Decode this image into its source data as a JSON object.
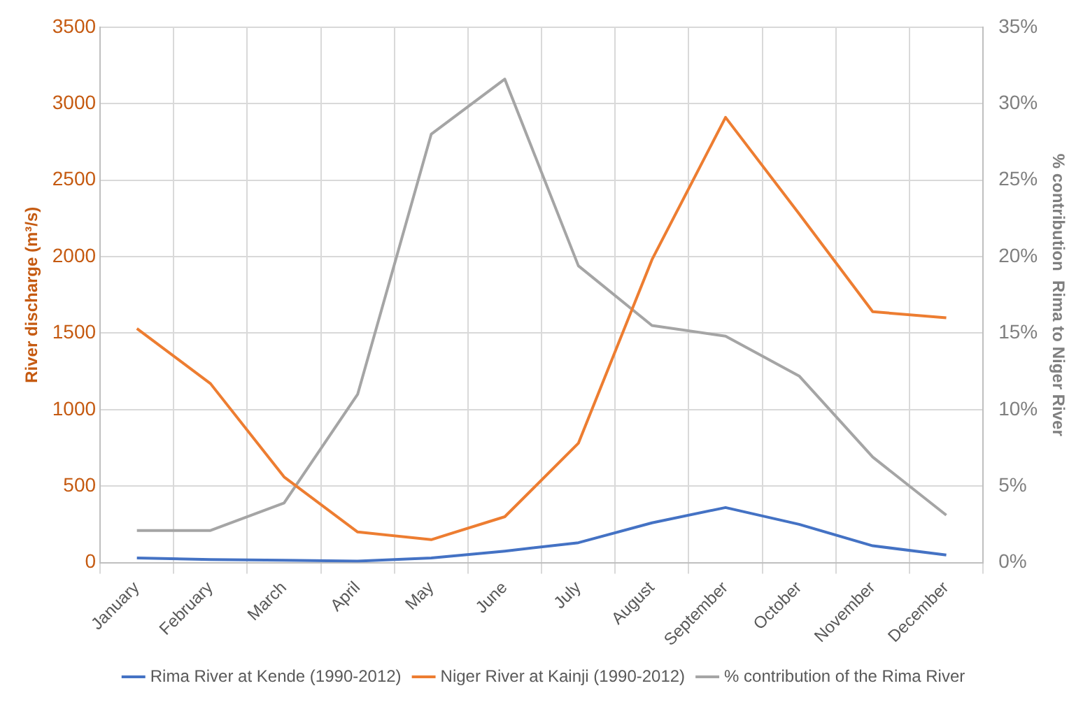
{
  "chart_data": {
    "type": "line",
    "categories": [
      "January",
      "February",
      "March",
      "April",
      "May",
      "June",
      "July",
      "August",
      "September",
      "October",
      "November",
      "December"
    ],
    "ylabel": "River discharge (m³/s)",
    "y2label": "% contribution  Rima to Niger River",
    "series": [
      {
        "name": "Rima River at Kende (1990-2012)",
        "color": "#4472c4",
        "values": [
          30,
          20,
          15,
          10,
          30,
          75,
          130,
          260,
          360,
          250,
          110,
          50
        ]
      },
      {
        "name": "Niger River at Kainji (1990-2012)",
        "color": "#ed7d31",
        "values": [
          1530,
          1170,
          560,
          200,
          150,
          300,
          780,
          1980,
          2910,
          2280,
          1640,
          1600
        ]
      },
      {
        "name": "% contribution of the Rima River",
        "color": "#a5a5a5",
        "axis": "y2",
        "values": [
          2.1,
          2.1,
          3.9,
          11.0,
          28.0,
          31.6,
          19.4,
          15.5,
          14.8,
          12.2,
          6.9,
          3.1
        ]
      }
    ],
    "ylim": [
      0,
      3500
    ],
    "yticks": [
      0,
      500,
      1000,
      1500,
      2000,
      2500,
      3000,
      3500
    ],
    "y2lim": [
      0,
      35
    ],
    "y2ticks": [
      {
        "value": 0,
        "label": "0%"
      },
      {
        "value": 5,
        "label": "5%"
      },
      {
        "value": 10,
        "label": "10%"
      },
      {
        "value": 15,
        "label": "15%"
      },
      {
        "value": 20,
        "label": "20%"
      },
      {
        "value": 25,
        "label": "25%"
      },
      {
        "value": 30,
        "label": "30%"
      },
      {
        "value": 35,
        "label": "35%"
      }
    ],
    "grid": true,
    "legend": "bottom"
  }
}
